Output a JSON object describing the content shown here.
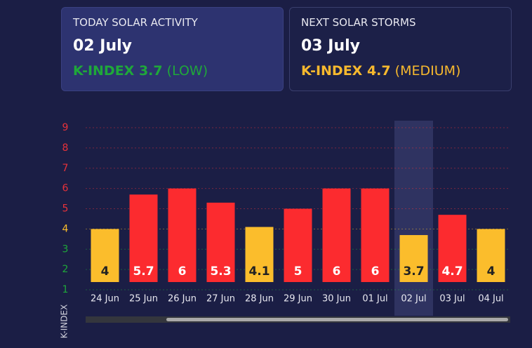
{
  "cards": [
    {
      "title": "TODAY SOLAR ACTIVITY",
      "date": "02 July",
      "index": "K-INDEX 3.7",
      "level": "(LOW)",
      "color": "#1fa83a"
    },
    {
      "title": "NEXT SOLAR STORMS",
      "date": "03 July",
      "index": "K-INDEX 4.7",
      "level": "(MEDIUM)",
      "color": "#f7b92e"
    }
  ],
  "chart_data": {
    "type": "bar",
    "y_label": "K-INDEX",
    "categories": [
      "24 Jun",
      "25 Jun",
      "26 Jun",
      "27 Jun",
      "28 Jun",
      "29 Jun",
      "30 Jun",
      "01 Jul",
      "02 Jul",
      "03 Jul",
      "04 Jul"
    ],
    "values": [
      4,
      5.7,
      6,
      5.3,
      4.1,
      5,
      6,
      6,
      3.7,
      4.7,
      4
    ],
    "colors": [
      "#fbbd2c",
      "#fc2b2f",
      "#fc2b2f",
      "#fc2b2f",
      "#fbbd2c",
      "#fc2b2f",
      "#fc2b2f",
      "#fc2b2f",
      "#fbbd2c",
      "#fc2b2f",
      "#fbbd2c"
    ],
    "highlight": 8,
    "ylim": [
      1,
      9
    ],
    "yticks": [
      1,
      2,
      3,
      4,
      5,
      6,
      7,
      8,
      9
    ],
    "ytick_colors": [
      "#1fa83a",
      "#1fa83a",
      "#1fa83a",
      "#fbbd2c",
      "#e8323a",
      "#e8323a",
      "#e8323a",
      "#e8323a",
      "#e8323a"
    ],
    "grid": true
  }
}
